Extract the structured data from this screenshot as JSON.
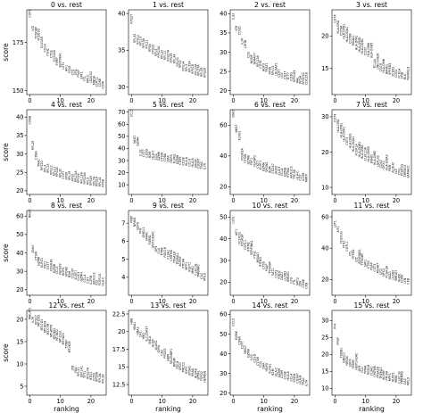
{
  "chart_data": [
    {
      "title": "0 vs. rest",
      "type": "scatter",
      "ylim": [
        148,
        192
      ],
      "yticks": [
        150,
        175
      ],
      "genes": [
        "CST3",
        "LYZ",
        "TYROBP",
        "FCER1G",
        "S100A9",
        "CD14",
        "FTH1",
        "CTSS",
        "S100A8",
        "TYMP",
        "SERPINA1",
        "LST1",
        "AIF1",
        "FCN1",
        "CFD",
        "SPI1",
        "PSAP",
        "SAT1",
        "FTL",
        "NPC2",
        "LGALS2",
        "MNDA",
        "COTL1",
        "CD68",
        "CSTA"
      ],
      "scores": [
        188,
        181,
        177,
        176,
        172,
        170,
        168,
        167,
        165,
        163,
        162,
        161,
        160,
        159,
        158,
        158,
        157,
        156,
        155,
        154,
        154,
        153,
        152,
        152,
        151
      ]
    },
    {
      "title": "1 vs. rest",
      "type": "scatter",
      "ylim": [
        29,
        40.5
      ],
      "yticks": [
        30,
        35,
        40
      ],
      "genes": [
        "RPS27",
        "RPL32",
        "RPS12",
        "RPL13",
        "RPS3A",
        "RPL21",
        "RPS6",
        "RPS25",
        "RPL9",
        "RPS15A",
        "RPL30",
        "RPL11",
        "RPS27A",
        "RPS29",
        "RPL34",
        "RPL31",
        "RPS3",
        "RPS14",
        "RPL3",
        "RPL35A",
        "RPS18",
        "RPL23A",
        "RPL27A",
        "RPL39",
        "RPS28"
      ],
      "scores": [
        38.6,
        36,
        35.8,
        35.6,
        35.3,
        35.2,
        34.8,
        34.5,
        34.2,
        34.0,
        33.8,
        33.7,
        33.5,
        33.3,
        33.2,
        32.8,
        32.6,
        32.2,
        32.1,
        32,
        31.8,
        31.6,
        31.5,
        31.4,
        31.3
      ]
    },
    {
      "title": "2 vs. rest",
      "type": "scatter",
      "ylim": [
        19,
        41
      ],
      "yticks": [
        20,
        25,
        30,
        35,
        40
      ],
      "genes": [
        "IL32",
        "LTB",
        "CD3D",
        "IL7R",
        "LDHB",
        "CD2",
        "NOSIP",
        "GIMAP7",
        "RPL23A",
        "CD3E",
        "AQP3",
        "TRAT1",
        "RPS6",
        "RPL13",
        "LDLRAP1",
        "CCR7",
        "LCK",
        "CD27",
        "TCF7",
        "CD3G",
        "GPR183",
        "MAL",
        "RPSA",
        "SPOCK2",
        "CDC25B"
      ],
      "scores": [
        38.5,
        35.5,
        34.5,
        32,
        31,
        28.5,
        27,
        26.8,
        26.2,
        25.8,
        25,
        24.8,
        24.2,
        24,
        23.8,
        23.5,
        23.2,
        23,
        22.8,
        22.5,
        22.2,
        22,
        21.8,
        21.6,
        21.5
      ]
    },
    {
      "title": "3 vs. rest",
      "type": "scatter",
      "ylim": [
        11,
        24
      ],
      "yticks": [
        15,
        20
      ],
      "genes": [
        "CD74",
        "HLA-DRA",
        "CD79A",
        "HLA-DPB1",
        "HLA-DQA1",
        "CD79B",
        "MS4A1",
        "HLA-DPA1",
        "HLA-DRB1",
        "HLA-DQB1",
        "CD37",
        "HLA-DMA",
        "HLA-DRB5",
        "TCL1A",
        "LINC00926",
        "CD19",
        "HLA-DMB",
        "BANK1",
        "VPREB3",
        "FCER2",
        "CD22",
        "FCRLA",
        "SPIB",
        "BLK",
        "TSPAN13"
      ],
      "scores": [
        22,
        20.3,
        20,
        19.5,
        19,
        18.8,
        18.5,
        17.8,
        17.5,
        17.2,
        17,
        16.8,
        16.6,
        15,
        14.8,
        14.5,
        14.3,
        14.1,
        14,
        13.8,
        13.6,
        13.5,
        13.4,
        13.3,
        13.2
      ]
    },
    {
      "title": "4 vs. rest",
      "type": "scatter",
      "ylim": [
        19,
        42
      ],
      "yticks": [
        20,
        25,
        30,
        35,
        40
      ],
      "genes": [
        "CD8B",
        "RPL29",
        "CD8A",
        "TRAC",
        "RPS25",
        "RPL3",
        "RPL13",
        "RPS12",
        "RPL11",
        "RPS3A",
        "RPL32",
        "CCR7",
        "RPS6",
        "RPL19",
        "RPS2",
        "RPL10A",
        "RPS16",
        "RPL13A",
        "RPS15A",
        "RPL5",
        "RPS4X",
        "RPL7A",
        "RPS18",
        "RPL14",
        "RPS8"
      ],
      "scores": [
        38,
        31,
        28.5,
        26.5,
        25.5,
        25,
        24.8,
        24.3,
        24,
        23.8,
        23.5,
        23.2,
        23,
        22.8,
        22.5,
        22.3,
        22.1,
        21.9,
        21.8,
        21.6,
        21.4,
        21.3,
        21.2,
        21.1,
        21
      ]
    },
    {
      "title": "5 vs. rest",
      "type": "scatter",
      "ylim": [
        2,
        72
      ],
      "yticks": [
        10,
        20,
        30,
        40,
        50,
        60,
        70
      ],
      "genes": [
        "CCL5",
        "NKG7",
        "GZMA",
        "IL32",
        "CST7",
        "CD3D",
        "B2M",
        "HLA-C",
        "CD2",
        "GZMK",
        "CTSW",
        "CD8A",
        "LYAR",
        "HOPX",
        "KLRG1",
        "GZMH",
        "CD99",
        "CD3E",
        "HLA-A",
        "CCL4",
        "HLA-B",
        "SRGN",
        "CD247",
        "TRAC",
        "IL7R"
      ],
      "scores": [
        66,
        44,
        42,
        34,
        33,
        32.5,
        32,
        31,
        30.5,
        30,
        29.5,
        29,
        28.5,
        28,
        27.5,
        27,
        26.5,
        26,
        25.5,
        25,
        24.5,
        24,
        23.5,
        23,
        22.5
      ]
    },
    {
      "title": "6 vs. rest",
      "type": "scatter",
      "ylim": [
        15,
        70
      ],
      "yticks": [
        20,
        40,
        60
      ],
      "genes": [
        "GNLY",
        "NKG7",
        "KLRD1",
        "FCGR3A",
        "CTSW",
        "GZMB",
        "PRF1",
        "FGFBP2",
        "CST7",
        "KLRF1",
        "GZMA",
        "SPON2",
        "B2M",
        "CD247",
        "HOPX",
        "CLIC3",
        "CCL4",
        "GZMH",
        "IFITM2",
        "AKR1C3",
        "TTC38",
        "HLA-C",
        "CD7",
        "IL2RB",
        "MATK"
      ],
      "scores": [
        65,
        55,
        50,
        37,
        35.5,
        34.5,
        34,
        33,
        32,
        31,
        30,
        29.5,
        29,
        28.5,
        28,
        27.5,
        27,
        26.5,
        26,
        25.5,
        25,
        24.5,
        24,
        23.5,
        23
      ]
    },
    {
      "title": "7 vs. rest",
      "type": "scatter",
      "ylim": [
        8,
        32
      ],
      "yticks": [
        10,
        20,
        30
      ],
      "genes": [
        "CD74",
        "HLA-DRA",
        "HLA-DPB1",
        "HLA-DPA1",
        "CST3",
        "HLA-DRB1",
        "HLA-DQA1",
        "FCER1A",
        "HLA-DQB1",
        "HLA-DMA",
        "CLEC10A",
        "HLA-DRB5",
        "ENHO",
        "HLA-DMB",
        "LGALS2",
        "CD1C",
        "GPX1",
        "HLA-DQA2",
        "PKIB",
        "ALDH2",
        "LYZ",
        "CPVL",
        "FCER1G",
        "TMSB10",
        "SAMHD1"
      ],
      "scores": [
        28.5,
        25.5,
        24,
        23,
        22,
        21,
        20,
        19,
        18.5,
        18,
        17.5,
        17.2,
        16.8,
        16.3,
        15.8,
        15.5,
        15.2,
        14.8,
        14.5,
        14.2,
        13.8,
        13.5,
        13.2,
        12.9,
        12.6
      ]
    },
    {
      "title": "8 vs. rest",
      "type": "scatter",
      "ylim": [
        17,
        63
      ],
      "yticks": [
        20,
        30,
        40,
        50,
        60
      ],
      "genes": [
        "NKG7",
        "GNLY",
        "CTSW",
        "GZMA",
        "KLRD1",
        "PRF1",
        "CST7",
        "FCGR3A",
        "GZMB",
        "CCL5",
        "FGFBP2",
        "HOPX",
        "SPON2",
        "B2M",
        "CD247",
        "KLRF1",
        "CLIC3",
        "GZMH",
        "CCL4",
        "CD7",
        "IL2RB",
        "AKR1C3",
        "ID2",
        "FCER1G",
        "HLA-C"
      ],
      "scores": [
        59,
        40,
        36,
        33,
        32,
        31.5,
        31,
        30,
        29,
        28.5,
        28,
        27.5,
        27,
        26.5,
        26,
        25.5,
        25,
        24.5,
        24,
        23.5,
        23,
        22.8,
        22.5,
        22.2,
        22
      ]
    },
    {
      "title": "9 vs. rest",
      "type": "scatter",
      "ylim": [
        3,
        7.7
      ],
      "yticks": [
        4,
        5,
        6,
        7
      ],
      "genes": [
        "PPBP",
        "NRGN",
        "SDPR",
        "PF4",
        "GNG11",
        "SPARC",
        "TUBB1",
        "HIST1H2AC",
        "GP9",
        "CLU",
        "TPM4",
        "RGS18",
        "F13A1",
        "CMTM5",
        "ITGA2B",
        "TREML1",
        "ACRBP",
        "PTCRA",
        "MPP1",
        "RUFY1",
        "MMD",
        "CLEC1B",
        "TMEM40",
        "CA2",
        "MYL9"
      ],
      "scores": [
        7,
        6.8,
        6.6,
        6.4,
        6.2,
        6.0,
        5.8,
        5.6,
        5.4,
        5.3,
        5.2,
        5.1,
        5.0,
        4.9,
        4.8,
        4.7,
        4.6,
        4.5,
        4.4,
        4.3,
        4.2,
        4.1,
        4.0,
        3.9,
        3.8
      ]
    },
    {
      "title": "10 vs. rest",
      "type": "scatter",
      "ylim": [
        14,
        53
      ],
      "yticks": [
        20,
        30,
        40,
        50
      ],
      "genes": [
        "LST1",
        "AIF1",
        "FCER1G",
        "FCGR3A",
        "COTL1",
        "IFITM2",
        "SERPINA1",
        "FTH1",
        "MS4A7",
        "IFITM3",
        "CTSS",
        "PSAP",
        "TYROBP",
        "SAT1",
        "CST3",
        "RHOC",
        "OAZ1",
        "LILRB2",
        "HMOX1",
        "CFD",
        "FTL",
        "NPC2",
        "LYN",
        "CD68",
        "CKB"
      ],
      "scores": [
        47,
        41.5,
        37.5,
        36.5,
        35,
        34,
        32.5,
        31,
        29,
        27,
        26,
        25,
        24,
        23,
        22,
        21.5,
        21,
        20.5,
        20,
        19.5,
        19,
        18.5,
        18,
        17.5,
        17
      ]
    },
    {
      "title": "11 vs. rest",
      "type": "scatter",
      "ylim": [
        10,
        64
      ],
      "yticks": [
        20,
        40,
        60
      ],
      "genes": [
        "LST1",
        "AIF1",
        "FCER1G",
        "FTH1",
        "COTL1",
        "FTL",
        "IFITM2",
        "LYZ",
        "SERPINA1",
        "TYROBP",
        "SAT1",
        "CTSS",
        "PSAP",
        "CST3",
        "MS4A7",
        "CFD",
        "NPC2",
        "FCGR3A",
        "OAZ1",
        "LILRB2",
        "HMOX1",
        "RHOC",
        "CD68",
        "LYN",
        "CKB"
      ],
      "scores": [
        53,
        50,
        43,
        40,
        38,
        35,
        33,
        31,
        30,
        29,
        28,
        27,
        26,
        25,
        24,
        23,
        22,
        21,
        20,
        19.5,
        19,
        18.5,
        18,
        17.5,
        17
      ]
    },
    {
      "title": "12 vs. rest",
      "type": "scatter",
      "ylim": [
        3,
        22
      ],
      "yticks": [
        5,
        10,
        15,
        20
      ],
      "genes": [
        "MALAT1",
        "IL7R",
        "RPS27",
        "MT-CO2",
        "MT-CO1",
        "MT-ND4",
        "MT-CYB",
        "MT-ATP6",
        "MT-ND1",
        "MT-ND2",
        "MT-CO3",
        "MT-ND3",
        "TXNIP",
        "MT-ND5",
        "LTB",
        "FAU",
        "RPL21",
        "EEF1A1",
        "TPT1",
        "RPS27A",
        "BTG1",
        "CD52",
        "RPS3A",
        "RPL34",
        "RPL39"
      ],
      "scores": [
        20,
        19.2,
        18.8,
        18.4,
        17.5,
        17,
        16.5,
        16,
        15.5,
        15.2,
        14.8,
        14.3,
        13.5,
        12.5,
        8.5,
        8,
        7.2,
        7,
        6.8,
        6.6,
        6.4,
        6.2,
        6,
        5.8,
        5.6
      ]
    },
    {
      "title": "13 vs. rest",
      "type": "scatter",
      "ylim": [
        11,
        23
      ],
      "yticks": [
        12.5,
        15,
        17.5,
        20,
        22.5
      ],
      "genes": [
        "HBB",
        "HBA1",
        "HBA2",
        "CA1",
        "HBD",
        "SLC25A37",
        "SNCA",
        "AHSP",
        "ALAS2",
        "GYPA",
        "CA2",
        "PRDX2",
        "HBM",
        "SELENBP1",
        "BPGM",
        "FECH",
        "XPO7",
        "TMCC2",
        "GYPC",
        "EPB42",
        "RHAG",
        "BLVRB",
        "SPTA1",
        "TSPO2",
        "HEMGN"
      ],
      "scores": [
        21,
        20.2,
        19.5,
        19.2,
        18.9,
        18.6,
        18.2,
        17.8,
        17.4,
        17,
        16.6,
        16.2,
        15.8,
        15.4,
        15,
        14.7,
        14.5,
        14.2,
        14,
        13.8,
        13.6,
        13.4,
        13.2,
        13,
        12.8
      ]
    },
    {
      "title": "14 vs. rest",
      "type": "scatter",
      "ylim": [
        19,
        62
      ],
      "yticks": [
        20,
        30,
        40,
        50,
        60
      ],
      "genes": [
        "CCL5",
        "GZMK",
        "CD8A",
        "CST7",
        "NKG7",
        "GZMA",
        "IL32",
        "CD3D",
        "CTSW",
        "CD2",
        "LYAR",
        "HOPX",
        "KLRG1",
        "B2M",
        "HLA-C",
        "GZMH",
        "CD99",
        "CD3E",
        "HLA-A",
        "CCL4",
        "SRGN",
        "CD247",
        "HLA-B",
        "TRAC",
        "IL7R"
      ],
      "scores": [
        54,
        47,
        44.5,
        42.5,
        40,
        38,
        36.5,
        35.5,
        34,
        33,
        32,
        31,
        30,
        29,
        28.5,
        28,
        27.5,
        27,
        26.5,
        26,
        25.5,
        25,
        24.5,
        24,
        23.5
      ]
    },
    {
      "title": "15 vs. rest",
      "type": "scatter",
      "ylim": [
        8,
        33
      ],
      "yticks": [
        10,
        15,
        20,
        25,
        30
      ],
      "genes": [
        "PF4",
        "PPBP",
        "TUBB1",
        "GNG11",
        "NRGN",
        "SDPR",
        "SPARC",
        "HIST1H2AC",
        "GP9",
        "CLU",
        "TPM4",
        "RGS18",
        "F13A1",
        "CMTM5",
        "ITGA2B",
        "TREML1",
        "ACRBP",
        "PTCRA",
        "MPP1",
        "RUFY1",
        "MMD",
        "CLEC1B",
        "TMEM40",
        "CA2",
        "MYL9"
      ],
      "scores": [
        27.5,
        22.8,
        19,
        17.5,
        16.8,
        16.3,
        15.8,
        15.4,
        15,
        14.6,
        14.3,
        14,
        13.7,
        13.4,
        13.1,
        12.8,
        12.5,
        12.3,
        12.1,
        11.9,
        11.7,
        11.5,
        11.3,
        11.1,
        10.9
      ]
    }
  ],
  "xaxis": {
    "label": "ranking",
    "ticks": [
      0,
      10,
      20
    ],
    "range": [
      -1,
      25
    ]
  },
  "yaxis": {
    "label": "score"
  }
}
